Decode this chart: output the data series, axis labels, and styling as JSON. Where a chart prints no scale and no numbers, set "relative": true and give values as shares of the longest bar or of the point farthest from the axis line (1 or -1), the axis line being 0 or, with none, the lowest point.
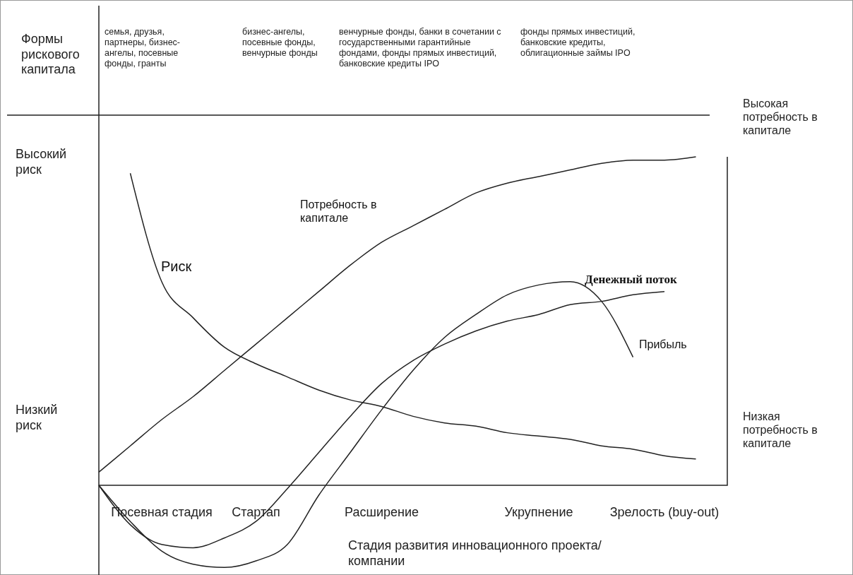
{
  "chart_data": {
    "type": "line",
    "relative": true,
    "xlabel": "Стадия развития инновационного проекта/компании",
    "categories": [
      null,
      null,
      "Посевная стадия",
      null,
      null,
      "Стартап",
      null,
      null,
      null,
      "Расширение",
      null,
      null,
      null,
      null,
      "Укрупнение",
      null,
      null,
      null,
      "Зрелость (buy-out)",
      null,
      null
    ],
    "series": [
      {
        "name": "Риск",
        "color": "#222222",
        "values": [
          null,
          0.95,
          0.62,
          0.51,
          0.42,
          0.37,
          0.33,
          0.29,
          0.26,
          0.24,
          0.21,
          0.19,
          0.18,
          0.16,
          0.15,
          0.14,
          0.12,
          0.11,
          0.09,
          0.08,
          null
        ]
      },
      {
        "name": "Потребность в капитале",
        "color": "#222222",
        "values": [
          0.04,
          0.12,
          0.2,
          0.27,
          0.35,
          0.43,
          0.51,
          0.59,
          0.67,
          0.74,
          0.79,
          0.84,
          0.89,
          0.92,
          0.94,
          0.96,
          0.98,
          0.99,
          0.99,
          1.0,
          null
        ]
      },
      {
        "name": "Денежный поток",
        "color": "#222222",
        "values": [
          0,
          -0.12,
          -0.18,
          -0.19,
          -0.16,
          -0.11,
          -0.01,
          0.1,
          0.21,
          0.31,
          0.38,
          0.43,
          0.47,
          0.5,
          0.52,
          0.55,
          0.56,
          0.58,
          0.59,
          null,
          null
        ]
      },
      {
        "name": "Прибыль",
        "color": "#222222",
        "values": [
          0,
          -0.11,
          -0.2,
          -0.24,
          -0.25,
          -0.23,
          -0.18,
          -0.03,
          0.1,
          0.23,
          0.35,
          0.45,
          0.52,
          0.58,
          0.61,
          0.62,
          0.56,
          0.39,
          null,
          null,
          null
        ]
      }
    ],
    "annotations": [
      "Формы рискового капитала",
      "семья, друзья, партнеры, бизнес-ангелы, посевные фонды, гранты",
      "бизнес-ангелы, посевные фонды, венчурные фонды",
      "венчурные фонды, банки в сочетании с государственными гарантийные фондами, фонды прямых инвестиций, банковские кредиты  IPO",
      "фонды прямых инвестиций, банковские кредиты, облигационные займы  IPO",
      "Высокий риск",
      "Низкий риск",
      "Высокая потребность в капитале",
      "Низкая потребность в капитале"
    ]
  }
}
